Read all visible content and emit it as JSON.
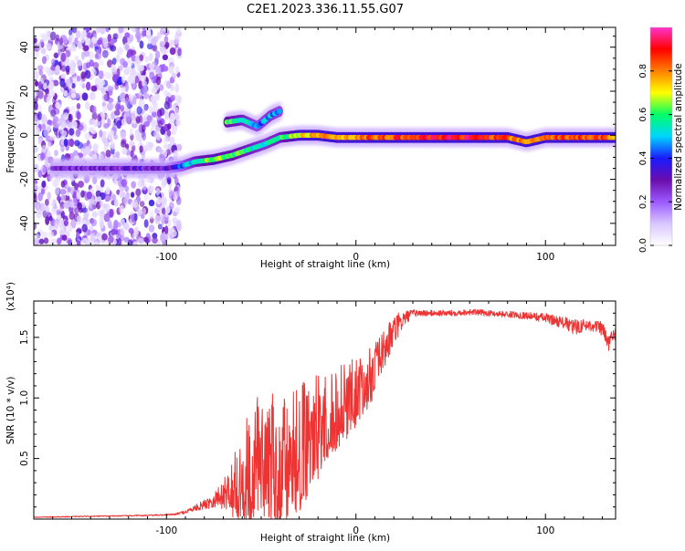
{
  "title": "C2E1.2023.336.11.55.G07",
  "colors": {
    "snr_line": "#ee3333",
    "background": "#ffffff",
    "colormap": [
      "#ffffff",
      "#d9c6ff",
      "#9b59ff",
      "#6a0dad",
      "#1a1aff",
      "#00d5ff",
      "#00ff66",
      "#ffff00",
      "#ff7f00",
      "#ff0000",
      "#ff33cc"
    ]
  },
  "chart_data": [
    {
      "type": "heatmap",
      "title": "C2E1.2023.336.11.55.G07",
      "xlabel": "Height of straight line (km)",
      "ylabel": "Frequency (Hz)",
      "xlim": [
        -170,
        137
      ],
      "ylim": [
        -50,
        49
      ],
      "xticks": [
        -100,
        0,
        100
      ],
      "yticks": [
        -40,
        -20,
        0,
        20,
        40
      ],
      "xtick_labels": [
        "-100",
        "0",
        "100"
      ],
      "ytick_labels": [
        "-40",
        "-20",
        "0",
        "20",
        "40"
      ],
      "colorbar": {
        "label": "Normalized spectral amplitude",
        "range": [
          0.0,
          1.0
        ],
        "ticks": [
          0.0,
          0.2,
          0.4,
          0.6,
          0.8
        ],
        "tick_labels": [
          "0.0",
          "0.2",
          "0.4",
          "0.6",
          "0.8"
        ]
      },
      "noise_region_x": [
        -170,
        -93
      ],
      "ridge": [
        {
          "x": -160,
          "f": -15,
          "amp": 0.25
        },
        {
          "x": -140,
          "f": -15,
          "amp": 0.25
        },
        {
          "x": -120,
          "f": -15,
          "amp": 0.3
        },
        {
          "x": -100,
          "f": -15,
          "amp": 0.3
        },
        {
          "x": -92,
          "f": -14,
          "amp": 0.4
        },
        {
          "x": -85,
          "f": -12,
          "amp": 0.55
        },
        {
          "x": -75,
          "f": -11,
          "amp": 0.65
        },
        {
          "x": -65,
          "f": -9,
          "amp": 0.6
        },
        {
          "x": -55,
          "f": -6,
          "amp": 0.55
        },
        {
          "x": -48,
          "f": -4,
          "amp": 0.5
        },
        {
          "x": -40,
          "f": -1,
          "amp": 0.55
        },
        {
          "x": -30,
          "f": 0,
          "amp": 0.7
        },
        {
          "x": -20,
          "f": 0,
          "amp": 0.8
        },
        {
          "x": -10,
          "f": -1,
          "amp": 0.75
        },
        {
          "x": 0,
          "f": -1,
          "amp": 0.8
        },
        {
          "x": 20,
          "f": -1,
          "amp": 0.85
        },
        {
          "x": 40,
          "f": -1,
          "amp": 0.88
        },
        {
          "x": 60,
          "f": -1,
          "amp": 0.9
        },
        {
          "x": 80,
          "f": -1,
          "amp": 0.85
        },
        {
          "x": 90,
          "f": -3,
          "amp": 0.75
        },
        {
          "x": 100,
          "f": -1,
          "amp": 0.85
        },
        {
          "x": 120,
          "f": -1,
          "amp": 0.85
        },
        {
          "x": 137,
          "f": -1,
          "amp": 0.8
        }
      ],
      "branch": [
        {
          "x": -68,
          "f": 6,
          "amp": 0.6
        },
        {
          "x": -60,
          "f": 7,
          "amp": 0.55
        },
        {
          "x": -52,
          "f": 4,
          "amp": 0.45
        },
        {
          "x": -45,
          "f": 9,
          "amp": 0.5
        },
        {
          "x": -40,
          "f": 11,
          "amp": 0.45
        }
      ]
    },
    {
      "type": "line",
      "xlabel": "Height of straight line (km)",
      "ylabel": "SNR (10 * v/v)",
      "y_multiplier": "(x10⁴)",
      "xlim": [
        -170,
        137
      ],
      "ylim": [
        0,
        18000
      ],
      "xticks": [
        -100,
        0,
        100
      ],
      "yticks": [
        5000,
        10000,
        15000
      ],
      "xtick_labels": [
        "-100",
        "0",
        "100"
      ],
      "ytick_labels": [
        "0.5",
        "1.0",
        "1.5"
      ],
      "series": [
        {
          "x": [
            -170,
            -150,
            -130,
            -110,
            -100,
            -95,
            -90,
            -85,
            -80,
            -75,
            -70,
            -65,
            -60,
            -55,
            -50,
            -45,
            -40,
            -35,
            -30,
            -25,
            -20,
            -15,
            -10,
            -5,
            0,
            5,
            10,
            15,
            20,
            25,
            30,
            40,
            50,
            60,
            70,
            80,
            90,
            100,
            110,
            115,
            120,
            125,
            130,
            133,
            137
          ],
          "y": [
            150,
            200,
            250,
            300,
            350,
            400,
            600,
            900,
            1200,
            1600,
            2000,
            2800,
            4000,
            5000,
            5500,
            5500,
            5500,
            6000,
            6500,
            7000,
            8000,
            9000,
            9500,
            10000,
            10800,
            11500,
            12500,
            14000,
            15500,
            16500,
            17000,
            17000,
            17000,
            17100,
            17000,
            16900,
            16800,
            16600,
            16200,
            15800,
            16000,
            16000,
            15700,
            14500,
            15400
          ],
          "spread": [
            30,
            40,
            40,
            50,
            60,
            80,
            150,
            250,
            400,
            700,
            1200,
            2200,
            3500,
            4500,
            5000,
            5000,
            5000,
            5200,
            5000,
            4600,
            4000,
            3500,
            3200,
            3000,
            2600,
            2300,
            2000,
            1700,
            1400,
            700,
            300,
            250,
            250,
            250,
            250,
            250,
            300,
            400,
            500,
            700,
            500,
            500,
            600,
            800,
            500
          ]
        }
      ]
    }
  ]
}
